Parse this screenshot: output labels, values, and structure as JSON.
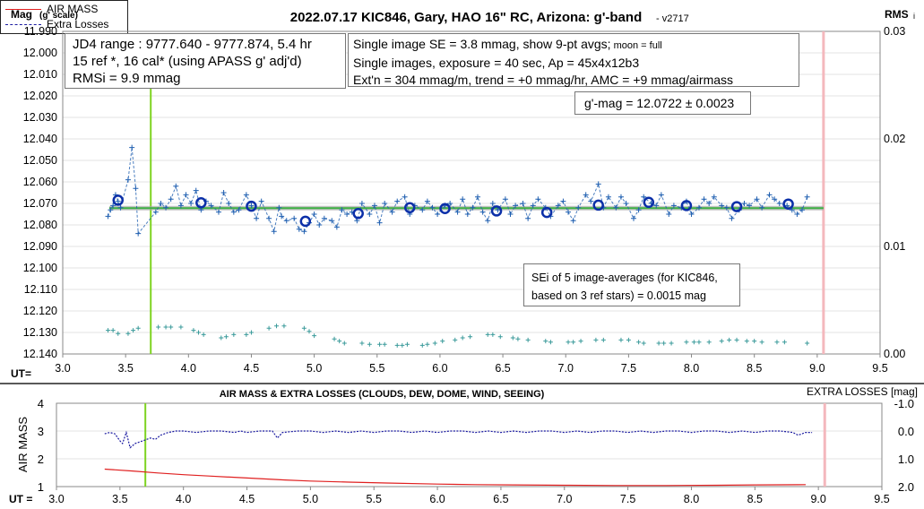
{
  "title": "2022.07.17 KIC846, Gary, HAO 16\" RC, Arizona: g'-band",
  "version": "- v2717",
  "top_chart": {
    "ylabel_left": "Mag",
    "ylabel_left_note": "(g' scale)",
    "ylabel_right": "RMS",
    "ylabel_right_note": "i",
    "xlabel": "UT=",
    "y_ticks": [
      "11.990",
      "12.000",
      "12.010",
      "12.020",
      "12.030",
      "12.040",
      "12.050",
      "12.060",
      "12.070",
      "12.080",
      "12.090",
      "12.100",
      "12.110",
      "12.120",
      "12.130",
      "12.140"
    ],
    "y2_ticks": [
      "0.03",
      "0.02",
      "0.01",
      "0.00"
    ],
    "x_ticks": [
      "3.0",
      "3.5",
      "4.0",
      "4.5",
      "5.0",
      "5.5",
      "6.0",
      "6.5",
      "7.0",
      "7.5",
      "8.0",
      "8.5",
      "9.0",
      "9.5"
    ]
  },
  "info_box": {
    "line1": "JD4 range : 9777.640 - 9777.874,  5.4 hr",
    "line2": "15 ref *, 16 cal* (using APASS g' adj'd)",
    "line3": "RMSi = 9.9 mmag"
  },
  "single_box": {
    "line1": "Single image SE = 3.8 mmag, show  9-pt avgs;",
    "line1_small": " moon = full",
    "line2": "Single images, exposure = 40 sec, Ap = 45x4x12b3",
    "line3": "Ext'n = 304 mmag/m, trend = +0 mmag/hr, AMC = +9 mmag/airmass"
  },
  "gmag_box": {
    "text": "g'-mag = 12.0722 ± 0.0023"
  },
  "sei_box": {
    "line1": "SEi of 5 image-averages (for KIC846,",
    "line2": "based on 3 ref stars) = 0.0015 mag"
  },
  "bottom_chart": {
    "title": "AIR MASS & EXTRA LOSSES (CLOUDS, DEW, DOME, WIND, SEEING)",
    "ylabel_left": "AIR MASS",
    "ylabel_right": "EXTRA LOSSES [mag]",
    "xlabel": "UT =",
    "y_ticks": [
      "4",
      "3",
      "2",
      "1"
    ],
    "y2_ticks": [
      "-1.0",
      "0.0",
      "1.0",
      "2.0"
    ],
    "x_ticks": [
      "3.0",
      "3.5",
      "4.0",
      "4.5",
      "5.0",
      "5.5",
      "6.0",
      "6.5",
      "7.0",
      "7.5",
      "8.0",
      "8.5",
      "9.0",
      "9.5"
    ]
  },
  "legend": {
    "airmass": "AIR MASS",
    "losses": "Extra Losses"
  },
  "colors": {
    "single": "#1f5fb0",
    "avg": "#0b2fa8",
    "fit": "#3cb043",
    "gray": "#aaaaaa",
    "rms": "#3a9a9a",
    "green_marker": "#7ed321",
    "pink_marker": "#f4b8bd",
    "airmass": "#e02020",
    "losses": "#1a1aa0"
  },
  "chart_data": [
    {
      "type": "scatter",
      "title": "2022.07.17 KIC846, Gary, HAO 16\" RC, Arizona: g'-band",
      "xlabel": "UT=",
      "ylabel": "Mag (g' scale)",
      "xlim": [
        3.0,
        9.5
      ],
      "ylim": [
        12.14,
        11.99
      ],
      "y2lim": [
        0.0,
        0.03
      ],
      "markers": {
        "green_line_x": 3.7,
        "pink_line_x": 9.05
      },
      "fit_mag": 12.0722,
      "series": [
        {
          "name": "single",
          "x": [
            3.36,
            3.38,
            3.4,
            3.42,
            3.44,
            3.46,
            3.52,
            3.55,
            3.58,
            3.6,
            3.74,
            3.78,
            3.82,
            3.86,
            3.9,
            3.94,
            3.98,
            4.02,
            4.06,
            4.1,
            4.14,
            4.18,
            4.24,
            4.28,
            4.32,
            4.36,
            4.4,
            4.46,
            4.5,
            4.54,
            4.58,
            4.64,
            4.68,
            4.72,
            4.74,
            4.78,
            4.84,
            4.88,
            4.92,
            4.96,
            5.0,
            5.04,
            5.08,
            5.14,
            5.18,
            5.22,
            5.26,
            5.3,
            5.34,
            5.38,
            5.44,
            5.48,
            5.52,
            5.56,
            5.62,
            5.66,
            5.72,
            5.76,
            5.8,
            5.86,
            5.9,
            5.94,
            5.98,
            6.04,
            6.08,
            6.14,
            6.18,
            6.22,
            6.26,
            6.3,
            6.34,
            6.38,
            6.42,
            6.46,
            6.52,
            6.56,
            6.6,
            6.66,
            6.7,
            6.74,
            6.78,
            6.84,
            6.88,
            6.94,
            6.98,
            7.02,
            7.06,
            7.1,
            7.16,
            7.2,
            7.26,
            7.3,
            7.34,
            7.4,
            7.44,
            7.48,
            7.54,
            7.58,
            7.62,
            7.68,
            7.72,
            7.76,
            7.82,
            7.86,
            7.92,
            7.96,
            8.0,
            8.06,
            8.1,
            8.14,
            8.18,
            8.24,
            8.28,
            8.32,
            8.38,
            8.42,
            8.46,
            8.52,
            8.56,
            8.62,
            8.66,
            8.7,
            8.76,
            8.8,
            8.84,
            8.88,
            8.92
          ],
          "y": [
            12.076,
            12.073,
            12.071,
            12.066,
            12.069,
            12.072,
            12.059,
            12.044,
            12.063,
            12.084,
            12.074,
            12.07,
            12.072,
            12.068,
            12.062,
            12.071,
            12.066,
            12.07,
            12.064,
            12.073,
            12.069,
            12.071,
            12.074,
            12.065,
            12.07,
            12.074,
            12.073,
            12.066,
            12.071,
            12.077,
            12.069,
            12.077,
            12.083,
            12.072,
            12.076,
            12.078,
            12.077,
            12.082,
            12.083,
            12.079,
            12.075,
            12.08,
            12.077,
            12.078,
            12.081,
            12.073,
            12.075,
            12.074,
            12.078,
            12.07,
            12.075,
            12.071,
            12.079,
            12.07,
            12.074,
            12.069,
            12.067,
            12.075,
            12.071,
            12.073,
            12.069,
            12.072,
            12.075,
            12.071,
            12.07,
            12.074,
            12.068,
            12.075,
            12.072,
            12.067,
            12.074,
            12.078,
            12.07,
            12.073,
            12.068,
            12.075,
            12.071,
            12.07,
            12.077,
            12.071,
            12.068,
            12.072,
            12.076,
            12.071,
            12.069,
            12.074,
            12.078,
            12.072,
            12.066,
            12.069,
            12.061,
            12.072,
            12.067,
            12.072,
            12.067,
            12.07,
            12.077,
            12.073,
            12.067,
            12.07,
            12.071,
            12.066,
            12.075,
            12.071,
            12.072,
            12.069,
            12.075,
            12.072,
            12.068,
            12.07,
            12.067,
            12.071,
            12.072,
            12.077,
            12.073,
            12.07,
            12.071,
            12.068,
            12.072,
            12.066,
            12.068,
            12.07,
            12.071,
            12.073,
            12.075,
            12.073,
            12.067
          ]
        },
        {
          "name": "9-pt avgs",
          "x": [
            3.44,
            4.1,
            4.5,
            4.93,
            5.35,
            5.76,
            6.04,
            6.45,
            6.85,
            7.26,
            7.66,
            7.96,
            8.36,
            8.77
          ],
          "y": [
            12.0685,
            12.0697,
            12.0713,
            12.0783,
            12.0747,
            12.072,
            12.0724,
            12.0735,
            12.0742,
            12.0708,
            12.0695,
            12.071,
            12.0715,
            12.0703
          ]
        },
        {
          "name": "RMSi",
          "x": [
            3.36,
            3.4,
            3.44,
            3.52,
            3.56,
            3.6,
            3.76,
            3.82,
            3.86,
            3.94,
            4.04,
            4.08,
            4.12,
            4.26,
            4.3,
            4.36,
            4.46,
            4.5,
            4.64,
            4.7,
            4.76,
            4.92,
            4.96,
            5.0,
            5.16,
            5.2,
            5.24,
            5.38,
            5.44,
            5.52,
            5.56,
            5.66,
            5.7,
            5.74,
            5.86,
            5.9,
            5.96,
            6.02,
            6.12,
            6.18,
            6.24,
            6.38,
            6.42,
            6.48,
            6.58,
            6.62,
            6.7,
            6.84,
            6.88,
            7.02,
            7.06,
            7.12,
            7.24,
            7.3,
            7.44,
            7.5,
            7.58,
            7.62,
            7.74,
            7.78,
            7.84,
            7.96,
            8.02,
            8.06,
            8.14,
            8.24,
            8.3,
            8.36,
            8.44,
            8.5,
            8.56,
            8.68,
            8.74,
            8.92
          ],
          "y2": [
            0.0022,
            0.0022,
            0.0019,
            0.0019,
            0.0022,
            0.0024,
            0.0025,
            0.0025,
            0.0025,
            0.0025,
            0.0022,
            0.002,
            0.0018,
            0.0015,
            0.0016,
            0.0018,
            0.0018,
            0.002,
            0.0024,
            0.0026,
            0.0026,
            0.0024,
            0.0021,
            0.0017,
            0.0014,
            0.0012,
            0.001,
            0.001,
            0.0009,
            0.0009,
            0.0009,
            0.0008,
            0.0008,
            0.0009,
            0.0008,
            0.0009,
            0.001,
            0.0012,
            0.0013,
            0.0015,
            0.0016,
            0.0018,
            0.0018,
            0.0016,
            0.0015,
            0.0014,
            0.0013,
            0.0012,
            0.0011,
            0.0011,
            0.0011,
            0.0012,
            0.0013,
            0.0013,
            0.0013,
            0.0013,
            0.0011,
            0.001,
            0.001,
            0.001,
            0.001,
            0.0011,
            0.0011,
            0.0011,
            0.0011,
            0.0012,
            0.0013,
            0.0013,
            0.0012,
            0.0012,
            0.0011,
            0.0011,
            0.0011,
            0.001
          ]
        }
      ]
    },
    {
      "type": "line",
      "title": "AIR MASS & EXTRA LOSSES (CLOUDS, DEW, DOME, WIND, SEEING)",
      "xlabel": "UT =",
      "ylabel": "AIR MASS",
      "y2label": "EXTRA LOSSES [mag]",
      "xlim": [
        3.0,
        9.5
      ],
      "ylim": [
        1,
        4
      ],
      "y2lim": [
        2.0,
        -1.0
      ],
      "markers": {
        "green_line_x": 3.7,
        "pink_line_x": 9.05
      },
      "series": [
        {
          "name": "AIR MASS",
          "x": [
            3.38,
            3.6,
            3.8,
            4.0,
            4.2,
            4.5,
            4.8,
            5.0,
            5.3,
            5.6,
            6.0,
            6.3,
            6.6,
            7.0,
            7.4,
            7.8,
            8.2,
            8.5,
            8.9
          ],
          "y": [
            1.63,
            1.56,
            1.49,
            1.43,
            1.38,
            1.31,
            1.24,
            1.2,
            1.16,
            1.13,
            1.09,
            1.07,
            1.06,
            1.05,
            1.04,
            1.04,
            1.05,
            1.06,
            1.07
          ]
        },
        {
          "name": "Extra Losses",
          "x": [
            3.38,
            3.42,
            3.46,
            3.5,
            3.52,
            3.55,
            3.58,
            3.62,
            3.68,
            3.74,
            3.78,
            3.82,
            3.88,
            3.94,
            4.0,
            4.1,
            4.2,
            4.3,
            4.4,
            4.45,
            4.5,
            4.6,
            4.7,
            4.74,
            4.78,
            4.9,
            5.0,
            5.1,
            5.2,
            5.3,
            5.4,
            5.5,
            5.6,
            5.7,
            5.8,
            5.9,
            6.0,
            6.1,
            6.2,
            6.3,
            6.4,
            6.5,
            6.6,
            6.7,
            6.8,
            6.9,
            7.0,
            7.1,
            7.2,
            7.3,
            7.4,
            7.5,
            7.6,
            7.7,
            7.8,
            7.9,
            8.0,
            8.1,
            8.2,
            8.3,
            8.4,
            8.5,
            8.6,
            8.7,
            8.8,
            8.84,
            8.9,
            8.95
          ],
          "y2": [
            0.1,
            0.05,
            0.1,
            0.35,
            0.45,
            0.05,
            0.6,
            0.45,
            0.35,
            0.25,
            0.3,
            0.15,
            0.05,
            0.0,
            0.0,
            0.05,
            0.0,
            0.0,
            0.05,
            0.0,
            0.05,
            0.0,
            0.0,
            0.25,
            0.05,
            0.0,
            0.0,
            0.05,
            0.0,
            0.05,
            0.0,
            0.05,
            0.0,
            0.0,
            0.05,
            0.0,
            0.05,
            0.0,
            0.0,
            0.05,
            0.0,
            0.05,
            0.0,
            0.05,
            0.0,
            0.0,
            0.05,
            0.0,
            0.05,
            0.0,
            0.0,
            0.05,
            0.0,
            0.05,
            0.0,
            0.0,
            0.05,
            0.0,
            0.0,
            0.05,
            0.0,
            0.05,
            0.0,
            0.0,
            0.05,
            0.15,
            0.05,
            0.05
          ]
        }
      ]
    }
  ]
}
